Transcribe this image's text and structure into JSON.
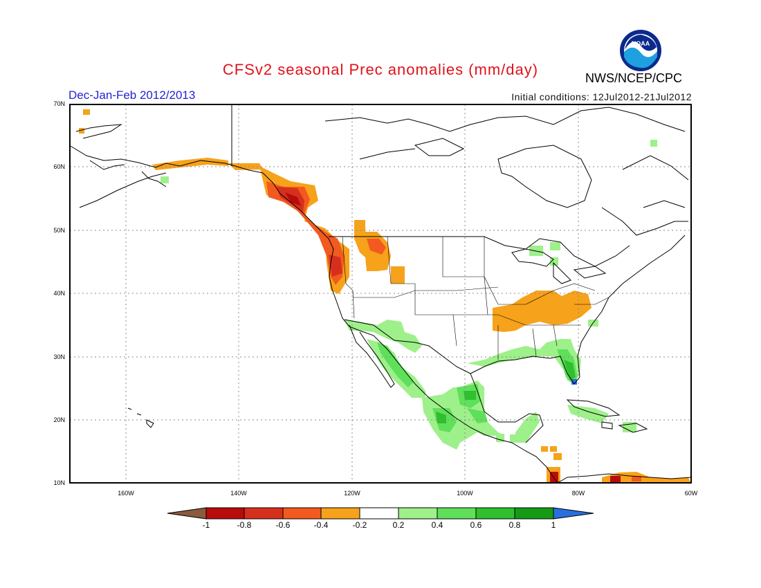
{
  "title": "CFSv2 seasonal Prec anomalies (mm/day)",
  "period": "Dec-Jan-Feb 2012/2013",
  "agency": "NWS/NCEP/CPC",
  "logo_text": "NOAA",
  "initial_conditions": "Initial conditions: 12Jul2012-21Jul2012",
  "lat_labels": [
    "70N",
    "60N",
    "50N",
    "40N",
    "30N",
    "20N",
    "10N"
  ],
  "lon_labels": [
    "160W",
    "140W",
    "120W",
    "100W",
    "80W",
    "60W"
  ],
  "colorbar": {
    "labels": [
      "-1",
      "-0.8",
      "-0.6",
      "-0.4",
      "-0.2",
      "0.2",
      "0.4",
      "0.6",
      "0.8",
      "1"
    ],
    "colors": [
      "#8c5a3c",
      "#b80b0b",
      "#d6301d",
      "#f25a1f",
      "#f6a21b",
      "#ffffff",
      "#9ef08a",
      "#60df5a",
      "#2fbf2f",
      "#159a15",
      "#2a6fdc"
    ]
  },
  "colors": {
    "title": "#e0121a",
    "period": "#2222d6",
    "ocean_line": "#000000"
  }
}
